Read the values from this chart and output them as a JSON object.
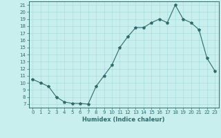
{
  "x": [
    0,
    1,
    2,
    3,
    4,
    5,
    6,
    7,
    8,
    9,
    10,
    11,
    12,
    13,
    14,
    15,
    16,
    17,
    18,
    19,
    20,
    21,
    22,
    23
  ],
  "y": [
    10.5,
    10.0,
    9.5,
    8.0,
    7.3,
    7.1,
    7.1,
    7.0,
    9.5,
    11.0,
    12.5,
    15.0,
    16.5,
    17.8,
    17.8,
    18.5,
    19.0,
    18.5,
    21.0,
    19.0,
    18.5,
    17.5,
    13.5,
    11.7
  ],
  "line_color": "#2e6b6b",
  "marker": "*",
  "marker_size": 3,
  "bg_color": "#c8eeee",
  "grid_color": "#aadddd",
  "xlabel": "Humidex (Indice chaleur)",
  "xlim": [
    -0.5,
    23.5
  ],
  "ylim": [
    6.5,
    21.5
  ],
  "yticks": [
    7,
    8,
    9,
    10,
    11,
    12,
    13,
    14,
    15,
    16,
    17,
    18,
    19,
    20,
    21
  ],
  "xticks": [
    0,
    1,
    2,
    3,
    4,
    5,
    6,
    7,
    8,
    9,
    10,
    11,
    12,
    13,
    14,
    15,
    16,
    17,
    18,
    19,
    20,
    21,
    22,
    23
  ],
  "tick_fontsize": 5,
  "label_fontsize": 6
}
